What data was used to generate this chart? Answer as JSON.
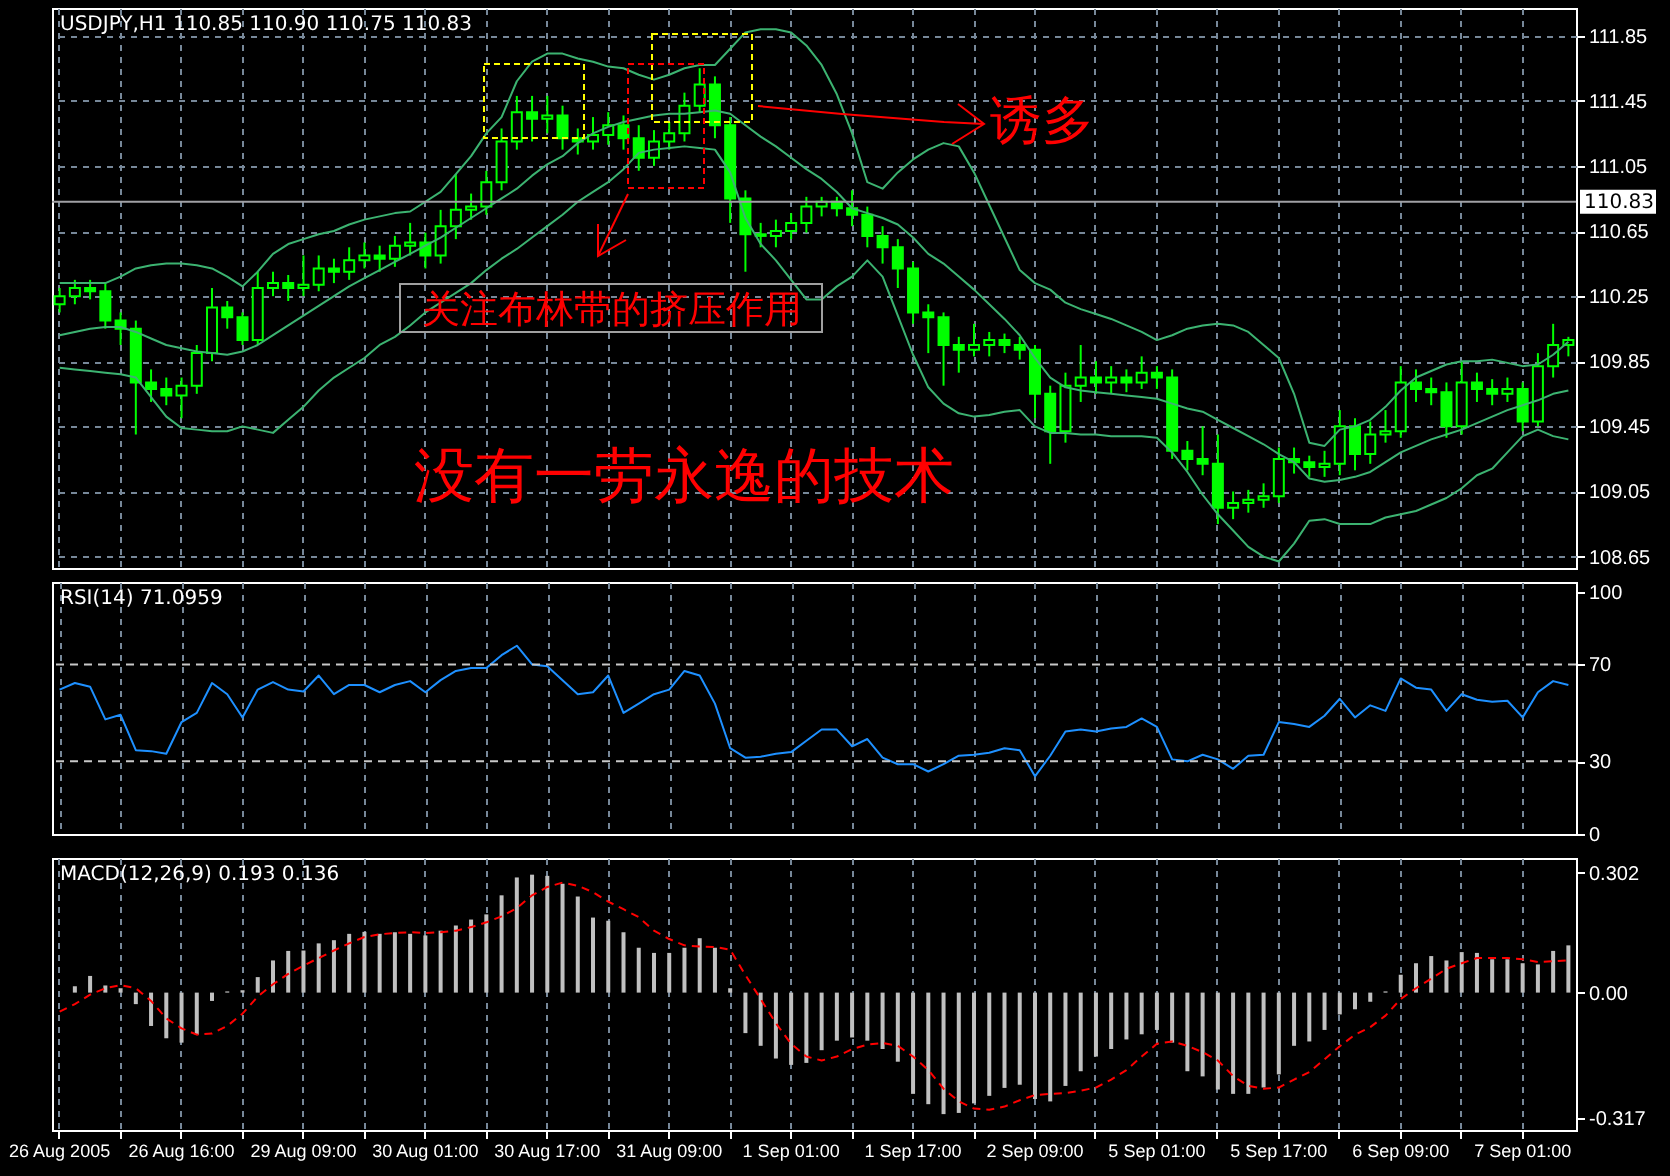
{
  "chart_data": [
    {
      "type": "candlestick",
      "title": "USDJPY,H1 110.85 110.90 110.75 110.83",
      "color": "#00ff00",
      "categories": [
        "26 Aug 2005",
        null,
        null,
        null,
        null,
        null,
        null,
        null,
        "26 Aug 16:00",
        null,
        null,
        null,
        null,
        null,
        null,
        null,
        "29 Aug 09:00",
        null,
        null,
        null,
        null,
        null,
        null,
        null,
        "30 Aug 01:00",
        null,
        null,
        null,
        null,
        null,
        null,
        null,
        "30 Aug 17:00",
        null,
        null,
        null,
        null,
        null,
        null,
        null,
        "31 Aug 09:00",
        null,
        null,
        null,
        null,
        null,
        null,
        null,
        "1 Sep 01:00",
        null,
        null,
        null,
        null,
        null,
        null,
        null,
        "1 Sep 17:00",
        null,
        null,
        null,
        null,
        null,
        null,
        null,
        "2 Sep 09:00",
        null,
        null,
        null,
        null,
        null,
        null,
        null,
        "5 Sep 01:00",
        null,
        null,
        null,
        null,
        null,
        null,
        null,
        "5 Sep 17:00",
        null,
        null,
        null,
        null,
        null,
        null,
        null,
        "6 Sep 09:00",
        null,
        null,
        null,
        null,
        null,
        null,
        null,
        "7 Sep 01:00",
        null,
        null,
        null
      ],
      "ohlc": [
        [
          110.2,
          110.3,
          110.15,
          110.25
        ],
        [
          110.25,
          110.35,
          110.2,
          110.3
        ],
        [
          110.3,
          110.35,
          110.23,
          110.28
        ],
        [
          110.28,
          110.33,
          110.05,
          110.1
        ],
        [
          110.1,
          110.15,
          109.95,
          110.05
        ],
        [
          110.05,
          110.1,
          109.4,
          109.72
        ],
        [
          109.72,
          109.8,
          109.6,
          109.68
        ],
        [
          109.68,
          109.75,
          109.58,
          109.64
        ],
        [
          109.64,
          109.75,
          109.5,
          109.7
        ],
        [
          109.7,
          109.95,
          109.65,
          109.9
        ],
        [
          109.9,
          110.3,
          109.85,
          110.18
        ],
        [
          110.18,
          110.22,
          110.05,
          110.12
        ],
        [
          110.12,
          110.15,
          109.95,
          109.98
        ],
        [
          109.98,
          110.4,
          109.95,
          110.3
        ],
        [
          110.3,
          110.4,
          110.25,
          110.33
        ],
        [
          110.33,
          110.38,
          110.22,
          110.3
        ],
        [
          110.3,
          110.5,
          110.25,
          110.32
        ],
        [
          110.32,
          110.5,
          110.28,
          110.42
        ],
        [
          110.42,
          110.48,
          110.33,
          110.4
        ],
        [
          110.4,
          110.55,
          110.35,
          110.47
        ],
        [
          110.47,
          110.58,
          110.42,
          110.5
        ],
        [
          110.5,
          110.56,
          110.4,
          110.48
        ],
        [
          110.48,
          110.62,
          110.43,
          110.56
        ],
        [
          110.56,
          110.7,
          110.5,
          110.58
        ],
        [
          110.58,
          110.64,
          110.42,
          110.5
        ],
        [
          110.5,
          110.78,
          110.45,
          110.68
        ],
        [
          110.68,
          111.0,
          110.6,
          110.78
        ],
        [
          110.78,
          110.88,
          110.72,
          110.8
        ],
        [
          110.8,
          111.02,
          110.75,
          110.95
        ],
        [
          110.95,
          111.28,
          110.9,
          111.2
        ],
        [
          111.2,
          111.48,
          111.15,
          111.38
        ],
        [
          111.38,
          111.48,
          111.2,
          111.34
        ],
        [
          111.34,
          111.48,
          111.25,
          111.36
        ],
        [
          111.36,
          111.42,
          111.15,
          111.22
        ],
        [
          111.22,
          111.28,
          111.12,
          111.2
        ],
        [
          111.2,
          111.35,
          111.15,
          111.24
        ],
        [
          111.24,
          111.38,
          111.18,
          111.3
        ],
        [
          111.3,
          111.36,
          111.15,
          111.22
        ],
        [
          111.22,
          111.3,
          111.02,
          111.1
        ],
        [
          111.1,
          111.27,
          111.05,
          111.2
        ],
        [
          111.2,
          111.32,
          111.15,
          111.25
        ],
        [
          111.25,
          111.5,
          111.2,
          111.42
        ],
        [
          111.42,
          111.65,
          111.38,
          111.55
        ],
        [
          111.55,
          111.6,
          111.22,
          111.3
        ],
        [
          111.3,
          111.35,
          110.7,
          110.85
        ],
        [
          110.85,
          110.9,
          110.4,
          110.63
        ],
        [
          110.63,
          110.7,
          110.55,
          110.62
        ],
        [
          110.62,
          110.72,
          110.55,
          110.65
        ],
        [
          110.65,
          110.76,
          110.6,
          110.7
        ],
        [
          110.7,
          110.86,
          110.64,
          110.8
        ],
        [
          110.8,
          110.86,
          110.74,
          110.83
        ],
        [
          110.83,
          110.86,
          110.74,
          110.79
        ],
        [
          110.79,
          110.9,
          110.68,
          110.75
        ],
        [
          110.75,
          110.8,
          110.55,
          110.62
        ],
        [
          110.62,
          110.68,
          110.45,
          110.55
        ],
        [
          110.55,
          110.6,
          110.3,
          110.42
        ],
        [
          110.42,
          110.46,
          110.08,
          110.15
        ],
        [
          110.15,
          110.2,
          109.9,
          110.12
        ],
        [
          110.12,
          110.15,
          109.7,
          109.95
        ],
        [
          109.95,
          110.0,
          109.78,
          109.92
        ],
        [
          109.92,
          110.08,
          109.88,
          109.95
        ],
        [
          109.95,
          110.03,
          109.88,
          109.98
        ],
        [
          109.98,
          110.02,
          109.9,
          109.95
        ],
        [
          109.95,
          110.0,
          109.86,
          109.92
        ],
        [
          109.92,
          109.95,
          109.5,
          109.65
        ],
        [
          109.65,
          109.7,
          109.22,
          109.42
        ],
        [
          109.42,
          109.78,
          109.35,
          109.7
        ],
        [
          109.7,
          109.95,
          109.6,
          109.75
        ],
        [
          109.75,
          109.85,
          109.65,
          109.72
        ],
        [
          109.72,
          109.82,
          109.65,
          109.75
        ],
        [
          109.75,
          109.8,
          109.66,
          109.72
        ],
        [
          109.72,
          109.88,
          109.68,
          109.78
        ],
        [
          109.78,
          109.82,
          109.68,
          109.75
        ],
        [
          109.75,
          109.8,
          109.25,
          109.3
        ],
        [
          109.3,
          109.36,
          109.18,
          109.25
        ],
        [
          109.25,
          109.45,
          109.15,
          109.22
        ],
        [
          109.22,
          109.4,
          108.85,
          108.95
        ],
        [
          108.95,
          109.05,
          108.88,
          108.98
        ],
        [
          108.98,
          109.06,
          108.92,
          109.0
        ],
        [
          109.0,
          109.1,
          108.95,
          109.02
        ],
        [
          109.02,
          109.32,
          108.98,
          109.25
        ],
        [
          109.25,
          109.32,
          109.16,
          109.23
        ],
        [
          109.23,
          109.27,
          109.14,
          109.2
        ],
        [
          109.2,
          109.3,
          109.14,
          109.22
        ],
        [
          109.22,
          109.55,
          109.15,
          109.45
        ],
        [
          109.45,
          109.5,
          109.18,
          109.28
        ],
        [
          109.28,
          109.48,
          109.22,
          109.4
        ],
        [
          109.4,
          109.55,
          109.35,
          109.42
        ],
        [
          109.42,
          109.82,
          109.38,
          109.72
        ],
        [
          109.72,
          109.8,
          109.6,
          109.68
        ],
        [
          109.68,
          109.75,
          109.58,
          109.66
        ],
        [
          109.66,
          109.72,
          109.38,
          109.45
        ],
        [
          109.45,
          109.85,
          109.4,
          109.72
        ],
        [
          109.72,
          109.78,
          109.6,
          109.68
        ],
        [
          109.68,
          109.74,
          109.58,
          109.65
        ],
        [
          109.65,
          109.75,
          109.6,
          109.68
        ],
        [
          109.68,
          109.72,
          109.42,
          109.48
        ],
        [
          109.48,
          109.9,
          109.45,
          109.82
        ],
        [
          109.82,
          110.08,
          109.75,
          109.95
        ],
        [
          109.95,
          110.0,
          109.88,
          109.98
        ]
      ],
      "series": [
        {
          "type": "line",
          "color": "#3cb371",
          "values": [
            110.33,
            110.33,
            110.33,
            110.33,
            110.37,
            110.42,
            110.44,
            110.45,
            110.45,
            110.44,
            110.42,
            110.37,
            110.31,
            110.4,
            110.51,
            110.57,
            110.6,
            110.63,
            110.65,
            110.69,
            110.72,
            110.74,
            110.76,
            110.77,
            110.83,
            110.89,
            111.0,
            111.11,
            111.25,
            111.35,
            111.57,
            111.69,
            111.74,
            111.74,
            111.71,
            111.69,
            111.66,
            111.65,
            111.61,
            111.58,
            111.61,
            111.65,
            111.67,
            111.67,
            111.77,
            111.87,
            111.89,
            111.89,
            111.87,
            111.79,
            111.67,
            111.49,
            111.25,
            110.95,
            110.91,
            111.01,
            111.09,
            111.15,
            111.19,
            111.17,
            111.01,
            110.81,
            110.61,
            110.41,
            110.33,
            110.29,
            110.21,
            110.17,
            110.14,
            110.11,
            110.07,
            110.03,
            109.98,
            110.01,
            110.05,
            110.07,
            110.08,
            110.07,
            110.03,
            109.95,
            109.87,
            109.65,
            109.35,
            109.33,
            109.43,
            109.45,
            109.49,
            109.57,
            109.67,
            109.75,
            109.79,
            109.83,
            109.85,
            109.85,
            109.86,
            109.84,
            109.82,
            109.83,
            109.89,
            109.97
          ]
        },
        {
          "type": "line",
          "color": "#3cb371",
          "values": [
            110.01,
            110.03,
            110.05,
            110.06,
            110.06,
            110.03,
            109.99,
            109.95,
            109.93,
            109.91,
            109.9,
            109.89,
            109.91,
            109.95,
            110.01,
            110.07,
            110.13,
            110.19,
            110.25,
            110.31,
            110.36,
            110.41,
            110.46,
            110.51,
            110.56,
            110.61,
            110.67,
            110.73,
            110.79,
            110.85,
            110.91,
            110.99,
            111.06,
            111.11,
            111.19,
            111.25,
            111.29,
            111.32,
            111.34,
            111.36,
            111.37,
            111.37,
            111.38,
            111.39,
            111.37,
            111.3,
            111.23,
            111.17,
            111.1,
            111.03,
            110.97,
            110.89,
            110.79,
            110.76,
            110.73,
            110.69,
            110.61,
            110.51,
            110.45,
            110.37,
            110.29,
            110.2,
            110.11,
            110.01,
            109.87,
            109.75,
            109.69,
            109.67,
            109.66,
            109.65,
            109.64,
            109.63,
            109.62,
            109.59,
            109.56,
            109.54,
            109.49,
            109.44,
            109.39,
            109.34,
            109.28,
            109.23,
            109.13,
            109.11,
            109.12,
            109.14,
            109.17,
            109.23,
            109.29,
            109.33,
            109.37,
            109.4,
            109.43,
            109.47,
            109.51,
            109.55,
            109.58,
            109.61,
            109.65,
            109.67
          ]
        },
        {
          "type": "line",
          "color": "#3cb371",
          "values": [
            109.81,
            109.8,
            109.79,
            109.78,
            109.77,
            109.75,
            109.63,
            109.51,
            109.44,
            109.43,
            109.42,
            109.42,
            109.45,
            109.43,
            109.41,
            109.49,
            109.57,
            109.67,
            109.75,
            109.81,
            109.87,
            109.95,
            110.0,
            110.07,
            110.15,
            110.21,
            110.27,
            110.33,
            110.41,
            110.48,
            110.54,
            110.61,
            110.68,
            110.75,
            110.83,
            110.89,
            110.95,
            111.03,
            111.13,
            111.15,
            111.16,
            111.17,
            111.16,
            111.15,
            111.01,
            110.73,
            110.57,
            110.47,
            110.35,
            110.23,
            110.23,
            110.31,
            110.37,
            110.47,
            110.37,
            110.13,
            109.89,
            109.69,
            109.59,
            109.53,
            109.51,
            109.52,
            109.54,
            109.55,
            109.45,
            109.41,
            109.41,
            109.4,
            109.4,
            109.39,
            109.39,
            109.39,
            109.38,
            109.29,
            109.17,
            109.03,
            108.91,
            108.81,
            108.71,
            108.65,
            108.62,
            108.73,
            108.87,
            108.88,
            108.85,
            108.85,
            108.85,
            108.89,
            108.91,
            108.93,
            108.97,
            109.01,
            109.07,
            109.15,
            109.19,
            109.29,
            109.39,
            109.43,
            109.39,
            109.37
          ]
        }
      ],
      "ylim": [
        108.58,
        112.02
      ],
      "yticks": [
        111.85,
        111.45,
        111.05,
        110.65,
        110.25,
        109.85,
        109.45,
        109.05,
        108.65
      ],
      "grid": true,
      "tick_labels": "y",
      "ref_lines": [
        {
          "axis": "y",
          "value": 110.83,
          "label": "110.83",
          "color": "#a0a0a4"
        }
      ],
      "annotations": [
        "诱多",
        "关注布林带的挤压作用",
        "没有一劳永逸的技术"
      ]
    },
    {
      "type": "line",
      "title": "RSI(14) 71.0959",
      "categories": [
        "26 Aug 2005",
        null,
        null,
        null,
        null,
        null,
        null,
        null,
        "26 Aug 16:00",
        null,
        null,
        null,
        null,
        null,
        null,
        null,
        "29 Aug 09:00",
        null,
        null,
        null,
        null,
        null,
        null,
        null,
        "30 Aug 01:00",
        null,
        null,
        null,
        null,
        null,
        null,
        null,
        "30 Aug 17:00",
        null,
        null,
        null,
        null,
        null,
        null,
        null,
        "31 Aug 09:00",
        null,
        null,
        null,
        null,
        null,
        null,
        null,
        "1 Sep 01:00",
        null,
        null,
        null,
        null,
        null,
        null,
        null,
        "1 Sep 17:00",
        null,
        null,
        null,
        null,
        null,
        null,
        null,
        "2 Sep 09:00",
        null,
        null,
        null,
        null,
        null,
        null,
        null,
        "5 Sep 01:00",
        null,
        null,
        null,
        null,
        null,
        null,
        null,
        "5 Sep 17:00",
        null,
        null,
        null,
        null,
        null,
        null,
        null,
        "6 Sep 09:00",
        null,
        null,
        null,
        null,
        null,
        null,
        null,
        "7 Sep 01:00",
        null,
        null,
        null
      ],
      "series": [
        {
          "color": "#1e90ff",
          "values": [
            59.6,
            62.3,
            60.8,
            47.3,
            49.2,
            34.6,
            34.2,
            33.1,
            46.2,
            50,
            62.3,
            57.7,
            48.1,
            59.6,
            62.7,
            59.6,
            58.8,
            65.4,
            57.7,
            61.5,
            61.5,
            58.5,
            61.5,
            63.1,
            58.5,
            63.5,
            67.3,
            68.5,
            68.5,
            73.8,
            77.7,
            70,
            69.2,
            63.5,
            57.7,
            58.5,
            65.4,
            50,
            53.8,
            57.7,
            59.6,
            67.3,
            65.4,
            53.8,
            35.4,
            31.5,
            31.9,
            33.1,
            33.8,
            38.5,
            43.1,
            43.1,
            36.2,
            39.2,
            31.5,
            28.8,
            28.8,
            25.8,
            28.8,
            32.3,
            32.7,
            33.5,
            35.4,
            34.6,
            23.8,
            32.3,
            42.3,
            43.1,
            42.3,
            43.5,
            44.2,
            47.7,
            44.2,
            30.8,
            30,
            32.7,
            30.8,
            26.9,
            32.3,
            32.7,
            46.2,
            45.4,
            44.2,
            48.8,
            55.8,
            48.1,
            53.1,
            50.8,
            64.2,
            60.4,
            59.6,
            50.8,
            57.7,
            55.4,
            54.6,
            55,
            48.1,
            58.5,
            63.1,
            61.5
          ]
        }
      ],
      "ylim": [
        0,
        104
      ],
      "yticks": [
        100,
        70,
        30,
        0
      ],
      "grid": "x",
      "tick_labels": "y",
      "ref_lines": [
        {
          "axis": "y",
          "value": 70,
          "color": "#c8c8c8",
          "line_style": "dashed"
        },
        {
          "axis": "y",
          "value": 30,
          "color": "#c8c8c8",
          "line_style": "dashed"
        }
      ]
    },
    {
      "type": "bar",
      "title": "MACD(12,26,9) 0.193 0.136",
      "categories": [
        "26 Aug 2005",
        null,
        null,
        null,
        null,
        null,
        null,
        null,
        "26 Aug 16:00",
        null,
        null,
        null,
        null,
        null,
        null,
        null,
        "29 Aug 09:00",
        null,
        null,
        null,
        null,
        null,
        null,
        null,
        "30 Aug 01:00",
        null,
        null,
        null,
        null,
        null,
        null,
        null,
        "30 Aug 17:00",
        null,
        null,
        null,
        null,
        null,
        null,
        null,
        "31 Aug 09:00",
        null,
        null,
        null,
        null,
        null,
        null,
        null,
        "1 Sep 01:00",
        null,
        null,
        null,
        null,
        null,
        null,
        null,
        "1 Sep 17:00",
        null,
        null,
        null,
        null,
        null,
        null,
        null,
        "2 Sep 09:00",
        null,
        null,
        null,
        null,
        null,
        null,
        null,
        "5 Sep 01:00",
        null,
        null,
        null,
        null,
        null,
        null,
        null,
        "5 Sep 17:00",
        null,
        null,
        null,
        null,
        null,
        null,
        null,
        "6 Sep 09:00",
        null,
        null,
        null,
        null,
        null,
        null,
        null,
        "7 Sep 01:00",
        null,
        null,
        null
      ],
      "series": [
        {
          "color": "#c0c0c0",
          "values": [
            0,
            0.016,
            0.042,
            0.018,
            0.011,
            -0.029,
            -0.084,
            -0.115,
            -0.126,
            -0.106,
            -0.021,
            0.003,
            0.006,
            0.039,
            0.081,
            0.105,
            0.106,
            0.124,
            0.132,
            0.148,
            0.153,
            0.148,
            0.152,
            0.148,
            0.144,
            0.156,
            0.169,
            0.184,
            0.197,
            0.245,
            0.29,
            0.297,
            0.294,
            0.274,
            0.242,
            0.189,
            0.181,
            0.152,
            0.113,
            0.1,
            0.1,
            0.113,
            0.137,
            0.113,
            0.011,
            -0.102,
            -0.134,
            -0.166,
            -0.182,
            -0.177,
            -0.145,
            -0.121,
            -0.113,
            -0.121,
            -0.142,
            -0.174,
            -0.255,
            -0.281,
            -0.306,
            -0.303,
            -0.279,
            -0.26,
            -0.24,
            -0.232,
            -0.268,
            -0.274,
            -0.235,
            -0.198,
            -0.161,
            -0.142,
            -0.118,
            -0.105,
            -0.094,
            -0.126,
            -0.198,
            -0.211,
            -0.244,
            -0.255,
            -0.255,
            -0.239,
            -0.206,
            -0.134,
            -0.123,
            -0.094,
            -0.055,
            -0.042,
            -0.023,
            0.003,
            0.045,
            0.074,
            0.092,
            0.081,
            0.102,
            0.1,
            0.084,
            0.084,
            0.074,
            0.071,
            0.105,
            0.119
          ]
        },
        {
          "type": "line",
          "color": "#ff0000",
          "line_style": "dashed",
          "values": [
            -0.048,
            -0.029,
            -0.005,
            0.011,
            0.019,
            0.011,
            -0.021,
            -0.065,
            -0.09,
            -0.106,
            -0.103,
            -0.084,
            -0.053,
            -0.01,
            0.021,
            0.047,
            0.068,
            0.087,
            0.106,
            0.124,
            0.14,
            0.147,
            0.15,
            0.152,
            0.15,
            0.152,
            0.156,
            0.165,
            0.177,
            0.192,
            0.213,
            0.245,
            0.266,
            0.277,
            0.269,
            0.253,
            0.229,
            0.21,
            0.19,
            0.156,
            0.135,
            0.119,
            0.116,
            0.115,
            0.108,
            0.044,
            -0.016,
            -0.077,
            -0.129,
            -0.161,
            -0.171,
            -0.161,
            -0.142,
            -0.131,
            -0.127,
            -0.134,
            -0.161,
            -0.195,
            -0.242,
            -0.274,
            -0.292,
            -0.295,
            -0.287,
            -0.271,
            -0.258,
            -0.255,
            -0.253,
            -0.247,
            -0.239,
            -0.219,
            -0.195,
            -0.161,
            -0.129,
            -0.123,
            -0.134,
            -0.15,
            -0.171,
            -0.21,
            -0.235,
            -0.242,
            -0.239,
            -0.219,
            -0.2,
            -0.168,
            -0.135,
            -0.106,
            -0.087,
            -0.058,
            -0.016,
            0.011,
            0.035,
            0.06,
            0.074,
            0.087,
            0.087,
            0.087,
            0.084,
            0.077,
            0.079,
            0.081
          ]
        }
      ],
      "ylim": [
        -0.346,
        0.339
      ],
      "yticks": [
        0.302,
        {
          "value": 0,
          "label": "0.00"
        },
        -0.317
      ],
      "grid": "x"
    }
  ]
}
